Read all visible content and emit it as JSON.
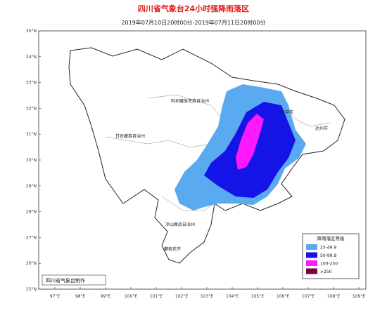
{
  "header": {
    "title": "四川省气象台24小时强降雨落区",
    "subtitle": "2019年07月10日20时00分-2019年07月11日20时00分"
  },
  "axes": {
    "lat_labels": [
      "35°N",
      "34°N",
      "33°N",
      "32°N",
      "31°N",
      "30°N",
      "29°N",
      "28°N",
      "27°N",
      "26°N",
      "25°N"
    ],
    "lon_labels": [
      "97°E",
      "98°E",
      "99°E",
      "100°E",
      "101°E",
      "102°E",
      "103°E",
      "104°E",
      "105°E",
      "106°E",
      "107°E",
      "108°E",
      "109°E"
    ]
  },
  "places": [
    "阿坝藏族羌族自治州",
    "甘孜藏族自治州",
    "凉山彝族自治州",
    "攀枝花市",
    "巴中市",
    "达州市"
  ],
  "legend": {
    "title": "降雨落区等级",
    "items": [
      {
        "label": "25-49.9",
        "color": "#5aaaf2"
      },
      {
        "label": "50-99.9",
        "color": "#1414e6"
      },
      {
        "label": "100-250",
        "color": "#ff19ff"
      },
      {
        "label": ">250",
        "color": "#7a0040"
      }
    ]
  },
  "credit": "四川省气象台制作"
}
